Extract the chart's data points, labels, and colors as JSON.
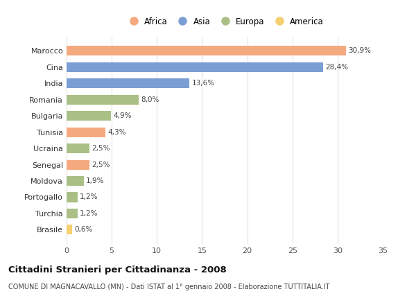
{
  "countries": [
    "Marocco",
    "Cina",
    "India",
    "Romania",
    "Bulgaria",
    "Tunisia",
    "Ucraina",
    "Senegal",
    "Moldova",
    "Portogallo",
    "Turchia",
    "Brasile"
  ],
  "values": [
    30.9,
    28.4,
    13.6,
    8.0,
    4.9,
    4.3,
    2.5,
    2.5,
    1.9,
    1.2,
    1.2,
    0.6
  ],
  "labels": [
    "30,9%",
    "28,4%",
    "13,6%",
    "8,0%",
    "4,9%",
    "4,3%",
    "2,5%",
    "2,5%",
    "1,9%",
    "1,2%",
    "1,2%",
    "0,6%"
  ],
  "continents": [
    "Africa",
    "Asia",
    "Asia",
    "Europa",
    "Europa",
    "Africa",
    "Europa",
    "Africa",
    "Europa",
    "Europa",
    "Europa",
    "America"
  ],
  "colors": {
    "Africa": "#F5A97F",
    "Asia": "#7B9ED4",
    "Europa": "#AABF85",
    "America": "#F5D070"
  },
  "legend_order": [
    "Africa",
    "Asia",
    "Europa",
    "America"
  ],
  "legend_colors": [
    "#F5A97F",
    "#7B9ED4",
    "#AABF85",
    "#F5D070"
  ],
  "xlim": [
    0,
    35
  ],
  "xticks": [
    0,
    5,
    10,
    15,
    20,
    25,
    30,
    35
  ],
  "title": "Cittadini Stranieri per Cittadinanza - 2008",
  "subtitle": "COMUNE DI MAGNACAVALLO (MN) - Dati ISTAT al 1° gennaio 2008 - Elaborazione TUTTITALIA.IT",
  "background_color": "#ffffff",
  "grid_color": "#e0e0e0",
  "bar_height": 0.6,
  "label_fontsize": 7.5,
  "ytick_fontsize": 8,
  "xtick_fontsize": 8
}
